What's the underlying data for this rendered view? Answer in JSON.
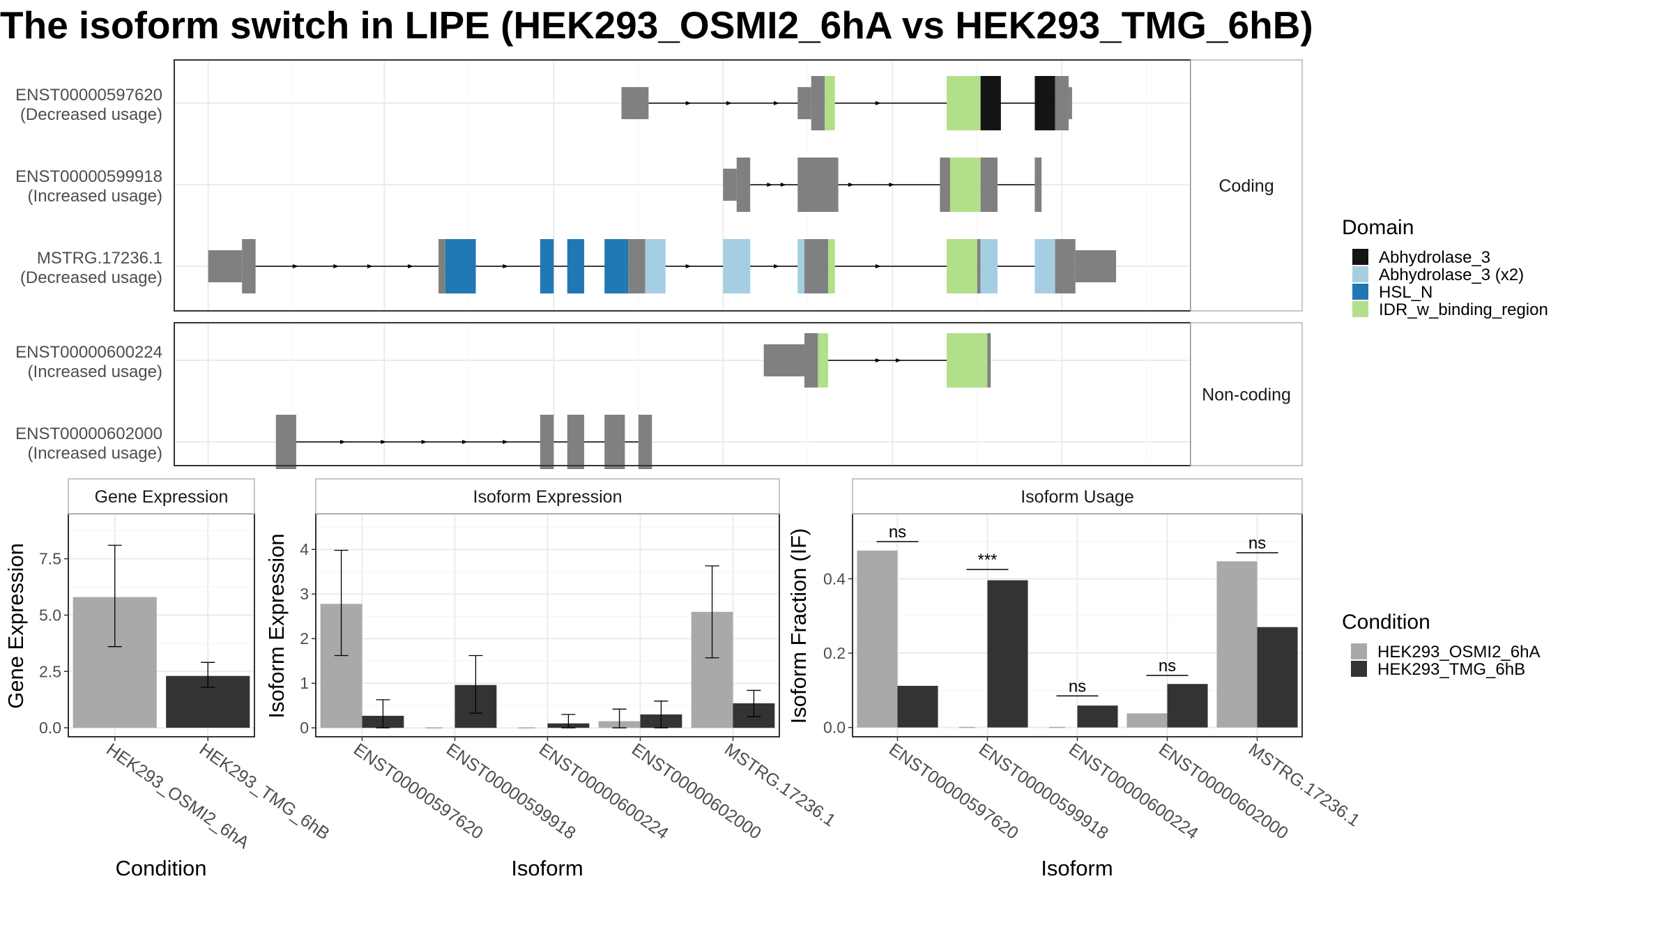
{
  "title": "The isoform switch in LIPE (HEK293_OSMI2_6hA vs HEK293_TMG_6hB)",
  "colors": {
    "cond_a": "#a9a9a9",
    "cond_b": "#333333",
    "exon": "#808080",
    "Abhydrolase_3": "#141414",
    "Abhydrolase_3 (x2)": "#a6cee3",
    "HSL_N": "#1f78b4",
    "IDR_w_binding_region": "#b2df8a"
  },
  "structure": {
    "panels": [
      {
        "strip": "Coding",
        "isoforms": [
          {
            "id": "ENST00000597620",
            "usage": "(Decreased usage)",
            "segs": [
              [
                0.66,
                0.7,
                "exon",
                "s"
              ],
              [
                0.92,
                0.94,
                "exon",
                "s"
              ],
              [
                0.94,
                0.96,
                "exon",
                "l"
              ],
              [
                0.96,
                0.975,
                "IDR_w_binding_region",
                "l"
              ],
              [
                1.14,
                1.19,
                "IDR_w_binding_region",
                "l"
              ],
              [
                1.19,
                1.22,
                "Abhydrolase_3",
                "l"
              ],
              [
                1.27,
                1.3,
                "Abhydrolase_3",
                "l"
              ],
              [
                1.3,
                1.32,
                "exon",
                "l"
              ],
              [
                1.32,
                1.325,
                "exon",
                "s"
              ]
            ],
            "intron": [
              0.7,
              1.32
            ],
            "arrows": [
              0.76,
              0.82,
              0.89,
              1.04
            ]
          },
          {
            "id": "ENST00000599918",
            "usage": "(Increased usage)",
            "segs": [
              [
                0.81,
                0.83,
                "exon",
                "s"
              ],
              [
                0.83,
                0.85,
                "exon",
                "l"
              ],
              [
                0.92,
                0.98,
                "exon",
                "l"
              ],
              [
                1.13,
                1.145,
                "exon",
                "l"
              ],
              [
                1.145,
                1.19,
                "IDR_w_binding_region",
                "l"
              ],
              [
                1.19,
                1.215,
                "exon",
                "l"
              ],
              [
                1.27,
                1.28,
                "exon",
                "l"
              ]
            ],
            "intron": [
              0.85,
              1.28
            ],
            "arrows": [
              0.88,
              0.9,
              1.0,
              1.06
            ]
          },
          {
            "id": "MSTRG.17236.1",
            "usage": "(Decreased usage)",
            "segs": [
              [
                0.05,
                0.1,
                "exon",
                "s"
              ],
              [
                0.1,
                0.12,
                "exon",
                "l"
              ],
              [
                0.39,
                0.4,
                "exon",
                "l"
              ],
              [
                0.4,
                0.445,
                "HSL_N",
                "l"
              ],
              [
                0.54,
                0.56,
                "HSL_N",
                "l"
              ],
              [
                0.58,
                0.605,
                "HSL_N",
                "l"
              ],
              [
                0.635,
                0.665,
                "HSL_N",
                "l"
              ],
              [
                0.665,
                0.67,
                "HSL_N",
                "l"
              ],
              [
                0.67,
                0.695,
                "exon",
                "l"
              ],
              [
                0.695,
                0.725,
                "Abhydrolase_3 (x2)",
                "l"
              ],
              [
                0.81,
                0.85,
                "Abhydrolase_3 (x2)",
                "l"
              ],
              [
                0.92,
                0.93,
                "Abhydrolase_3 (x2)",
                "l"
              ],
              [
                0.93,
                0.965,
                "exon",
                "l"
              ],
              [
                0.965,
                0.975,
                "IDR_w_binding_region",
                "l"
              ],
              [
                1.14,
                1.185,
                "IDR_w_binding_region",
                "l"
              ],
              [
                1.185,
                1.19,
                "exon",
                "l"
              ],
              [
                1.19,
                1.215,
                "Abhydrolase_3 (x2)",
                "l"
              ],
              [
                1.27,
                1.3,
                "Abhydrolase_3 (x2)",
                "l"
              ],
              [
                1.3,
                1.33,
                "exon",
                "l"
              ],
              [
                1.33,
                1.39,
                "exon",
                "s"
              ]
            ],
            "intron": [
              0.12,
              1.33
            ],
            "arrows": [
              0.18,
              0.24,
              0.29,
              0.35,
              0.49,
              0.76,
              0.89,
              1.04
            ]
          }
        ]
      },
      {
        "strip": "Non-coding",
        "isoforms": [
          {
            "id": "ENST00000600224",
            "usage": "(Increased usage)",
            "segs": [
              [
                0.87,
                0.93,
                "exon",
                "s"
              ],
              [
                0.93,
                0.95,
                "exon",
                "l"
              ],
              [
                0.95,
                0.965,
                "IDR_w_binding_region",
                "l"
              ],
              [
                1.14,
                1.2,
                "IDR_w_binding_region",
                "l"
              ],
              [
                1.2,
                1.205,
                "exon",
                "l"
              ]
            ],
            "intron": [
              0.965,
              1.14
            ],
            "arrows": [
              1.04,
              1.07
            ]
          },
          {
            "id": "ENST00000602000",
            "usage": "(Increased usage)",
            "segs": [
              [
                0.15,
                0.18,
                "exon",
                "l"
              ],
              [
                0.54,
                0.56,
                "exon",
                "l"
              ],
              [
                0.58,
                0.605,
                "exon",
                "l"
              ],
              [
                0.635,
                0.665,
                "exon",
                "l"
              ],
              [
                0.685,
                0.705,
                "exon",
                "l"
              ]
            ],
            "intron": [
              0.18,
              0.685
            ],
            "arrows": [
              0.25,
              0.31,
              0.37,
              0.43,
              0.49
            ]
          }
        ]
      }
    ]
  },
  "legend_domain": {
    "title": "Domain",
    "items": [
      "Abhydrolase_3",
      "Abhydrolase_3 (x2)",
      "HSL_N",
      "IDR_w_binding_region"
    ]
  },
  "legend_condition": {
    "title": "Condition",
    "items": [
      "HEK293_OSMI2_6hA",
      "HEK293_TMG_6hB"
    ]
  },
  "chart_data": [
    {
      "type": "bar",
      "title": "Gene Expression",
      "xlabel": "Condition",
      "ylabel": "Gene Expression",
      "categories": [
        "HEK293_OSMI2_6hA",
        "HEK293_TMG_6hB"
      ],
      "values": [
        5.8,
        2.3
      ],
      "err_lo": [
        3.6,
        1.8
      ],
      "err_hi": [
        8.1,
        2.9
      ],
      "ylim": [
        -0.4,
        9.5
      ],
      "yticks": [
        0.0,
        2.5,
        5.0,
        7.5
      ],
      "ytick_labels": [
        "0.0",
        "2.5",
        "5.0",
        "7.5"
      ]
    },
    {
      "type": "bar",
      "title": "Isoform Expression",
      "xlabel": "Isoform",
      "ylabel": "Isoform Expression",
      "categories": [
        "ENST00000597620",
        "ENST00000599918",
        "ENST00000600224",
        "ENST00000602000",
        "MSTRG.17236.1"
      ],
      "series": [
        {
          "name": "HEK293_OSMI2_6hA",
          "values": [
            2.78,
            0.0,
            0.0,
            0.15,
            2.6
          ],
          "err_lo": [
            1.62,
            null,
            null,
            0.0,
            1.57
          ],
          "err_hi": [
            3.98,
            null,
            null,
            0.42,
            3.63
          ]
        },
        {
          "name": "HEK293_TMG_6hB",
          "values": [
            0.27,
            0.96,
            0.1,
            0.3,
            0.55
          ],
          "err_lo": [
            0.0,
            0.33,
            0.0,
            0.0,
            0.25
          ],
          "err_hi": [
            0.63,
            1.62,
            0.3,
            0.6,
            0.84
          ]
        }
      ],
      "ylim": [
        -0.2,
        4.8
      ],
      "yticks": [
        0,
        1,
        2,
        3,
        4
      ],
      "ytick_labels": [
        "0",
        "1",
        "2",
        "3",
        "4"
      ]
    },
    {
      "type": "bar",
      "title": "Isoform Usage",
      "xlabel": "Isoform",
      "ylabel": "Isoform Fraction (IF)",
      "categories": [
        "ENST00000597620",
        "ENST00000599918",
        "ENST00000600224",
        "ENST00000602000",
        "MSTRG.17236.1"
      ],
      "series": [
        {
          "name": "HEK293_OSMI2_6hA",
          "values": [
            0.476,
            0.0,
            0.0,
            0.038,
            0.447
          ]
        },
        {
          "name": "HEK293_TMG_6hB",
          "values": [
            0.112,
            0.396,
            0.059,
            0.117,
            0.27
          ]
        }
      ],
      "significance": [
        {
          "label": "ns",
          "y": 0.5
        },
        {
          "label": "***",
          "y": 0.425
        },
        {
          "label": "ns",
          "y": 0.085
        },
        {
          "label": "ns",
          "y": 0.14
        },
        {
          "label": "ns",
          "y": 0.47
        }
      ],
      "ylim": [
        -0.025,
        0.575
      ],
      "yticks": [
        0.0,
        0.2,
        0.4
      ],
      "ytick_labels": [
        "0.0",
        "0.2",
        "0.4"
      ]
    }
  ]
}
